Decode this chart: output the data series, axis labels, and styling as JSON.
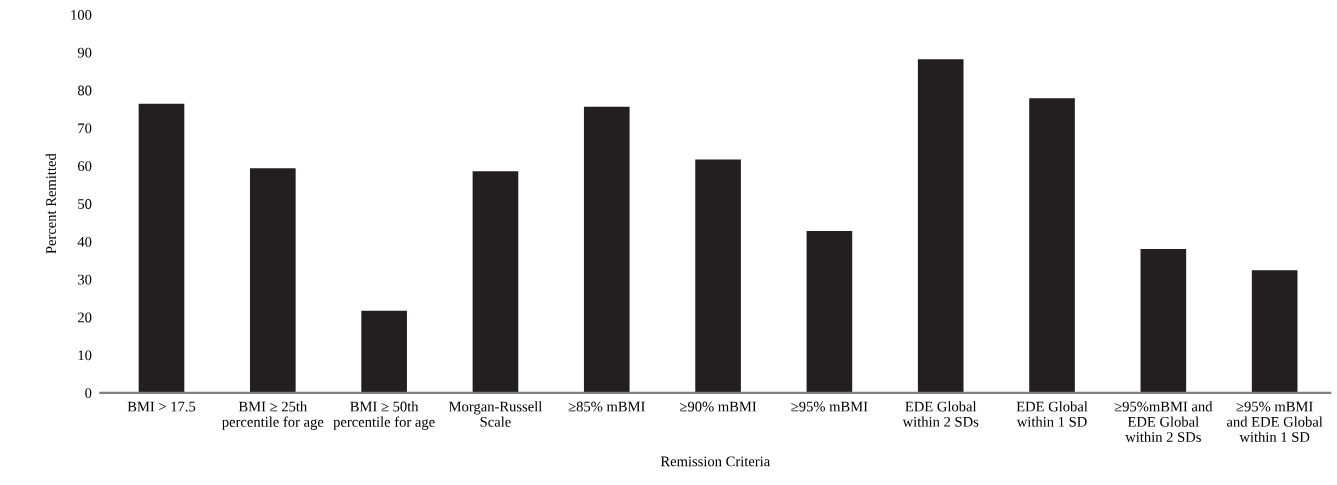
{
  "chart_data": {
    "type": "bar",
    "xlabel": "Remission Criteria",
    "ylabel": "Percent Remitted",
    "categories": [
      "BMI > 17.5",
      "BMI ≥ 25th\npercentile for age",
      "BMI ≥ 50th\npercentile for age",
      "Morgan-Russell\nScale",
      "≥85% mBMI",
      "≥90% mBMI",
      "≥95% mBMI",
      "EDE Global\nwithin 2 SDs",
      "EDE Global\nwithin 1 SD",
      "≥95%mBMI and\nEDE Global\nwithin 2 SDs",
      "≥95% mBMI\nand EDE Global\nwithin 1 SD"
    ],
    "values": [
      76.4,
      59.4,
      21.7,
      58.6,
      75.6,
      61.7,
      42.8,
      88.2,
      77.9,
      38.0,
      32.4
    ],
    "color": "#231f20",
    "ylim": [
      0,
      100
    ],
    "yticks": [
      0,
      10,
      20,
      30,
      40,
      50,
      60,
      70,
      80,
      90,
      100
    ],
    "grid": false,
    "legend": false
  }
}
